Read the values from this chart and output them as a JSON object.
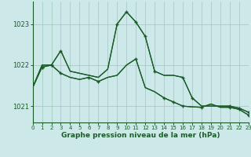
{
  "title": "Graphe pression niveau de la mer (hPa)",
  "bg": "#cce8e8",
  "grid_color": "#99ccbb",
  "line_color": "#1a5c28",
  "xlim": [
    0,
    23
  ],
  "ylim": [
    1020.6,
    1023.55
  ],
  "yticks": [
    1021,
    1022,
    1023
  ],
  "xticks": [
    0,
    1,
    2,
    3,
    4,
    5,
    6,
    7,
    8,
    9,
    10,
    11,
    12,
    13,
    14,
    15,
    16,
    17,
    18,
    19,
    20,
    21,
    22,
    23
  ],
  "series1_x": [
    0,
    1,
    2,
    3,
    4,
    5,
    6,
    7,
    8,
    9,
    10,
    11,
    12,
    13,
    14,
    15,
    16,
    17,
    18,
    19,
    20,
    21,
    22,
    23
  ],
  "series1_y": [
    1021.45,
    1022.0,
    1022.0,
    1022.35,
    1021.85,
    1021.8,
    1021.75,
    1021.7,
    1021.9,
    1023.0,
    1023.3,
    1023.05,
    1022.7,
    1021.85,
    1021.75,
    1021.75,
    1021.7,
    1021.2,
    1021.0,
    1021.0,
    1021.0,
    1021.0,
    1020.95,
    1020.85
  ],
  "series2_x": [
    0,
    1,
    2,
    3,
    4,
    5,
    6,
    7,
    8,
    9,
    10,
    11,
    12,
    13,
    14,
    15,
    16,
    17,
    18,
    19,
    20,
    21,
    22,
    23
  ],
  "series2_y": [
    1021.45,
    1022.0,
    1022.0,
    1022.35,
    1021.85,
    1021.8,
    1021.75,
    1021.7,
    1021.9,
    1023.0,
    1023.3,
    1023.05,
    1022.7,
    1021.85,
    1021.75,
    1021.75,
    1021.7,
    1021.2,
    1021.0,
    1021.0,
    1021.0,
    1021.0,
    1020.95,
    1020.85
  ],
  "series3_x": [
    0,
    1,
    2,
    3,
    4,
    5,
    6,
    7,
    8,
    9,
    10,
    11,
    12,
    13,
    14,
    15,
    16,
    17,
    18,
    19,
    20,
    21,
    22,
    23
  ],
  "series3_y": [
    1021.45,
    1021.95,
    1022.0,
    1021.8,
    1021.7,
    1021.65,
    1021.7,
    1021.6,
    1021.7,
    1021.75,
    1022.0,
    1022.15,
    1021.45,
    1021.35,
    1021.2,
    1021.1,
    1021.0,
    1020.98,
    1020.97,
    1021.05,
    1020.97,
    1020.97,
    1020.92,
    1020.78
  ],
  "series4_x": [
    0,
    1,
    2,
    3,
    4,
    5,
    6,
    7,
    8,
    9,
    10,
    11,
    12,
    13,
    14,
    15,
    16,
    17,
    18,
    19,
    20,
    21,
    22,
    23
  ],
  "series4_y": [
    1021.45,
    1021.95,
    1022.0,
    1021.8,
    1021.7,
    1021.65,
    1021.7,
    1021.6,
    1021.7,
    1021.75,
    1022.0,
    1022.15,
    1021.45,
    1021.35,
    1021.2,
    1021.1,
    1021.0,
    1020.98,
    1020.97,
    1021.05,
    1020.97,
    1020.97,
    1020.92,
    1020.78
  ],
  "markers1_x": [
    1,
    2,
    3,
    9,
    10,
    11,
    12,
    13,
    16,
    17,
    21,
    22,
    23
  ],
  "markers1_y": [
    1021.95,
    1022.0,
    1022.35,
    1023.0,
    1023.3,
    1023.05,
    1022.7,
    1021.85,
    1021.7,
    1021.2,
    1021.0,
    1020.95,
    1020.85
  ],
  "markers2_x": [
    1,
    2,
    3,
    6,
    7,
    11,
    14,
    15,
    16,
    18,
    21,
    22,
    23
  ],
  "markers2_y": [
    1021.95,
    1022.0,
    1021.8,
    1021.7,
    1021.6,
    1022.15,
    1021.2,
    1021.1,
    1021.0,
    1020.97,
    1020.97,
    1020.92,
    1020.78
  ]
}
